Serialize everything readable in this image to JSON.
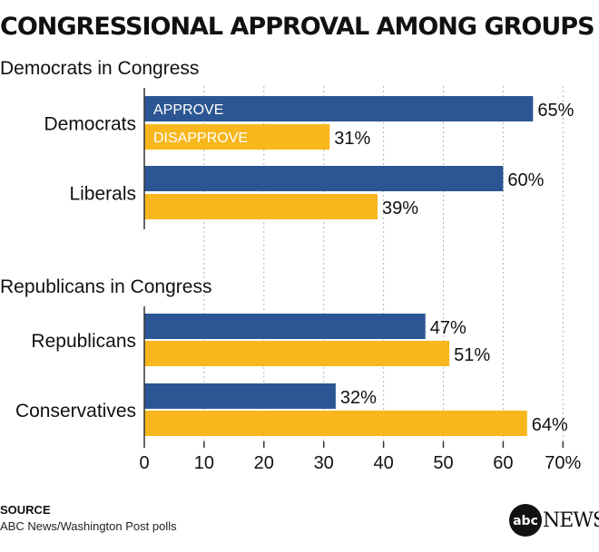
{
  "title": "CONGRESSIONAL APPROVAL AMONG GROUPS",
  "source": {
    "label": "SOURCE",
    "text": "ABC News/Washington Post polls"
  },
  "logo": {
    "mark": "abc",
    "text": "NEWS"
  },
  "colors": {
    "approve": "#2c5693",
    "disapprove": "#f7b71d",
    "axis": "#333333",
    "grid": "#b5b5b5"
  },
  "chart_data": {
    "type": "bar",
    "orientation": "horizontal",
    "xlim": [
      0,
      70
    ],
    "xticks": [
      "0",
      "10",
      "20",
      "30",
      "40",
      "50",
      "60",
      "70%"
    ],
    "grid": true,
    "legend": "inside-first-bars",
    "series": [
      {
        "name": "APPROVE",
        "color": "#2c5693"
      },
      {
        "name": "DISAPPROVE",
        "color": "#f7b71d"
      }
    ],
    "panels": [
      {
        "title": "Democrats in Congress",
        "groups": [
          {
            "label": "Democrats",
            "values": [
              65,
              31
            ],
            "value_labels": [
              "65%",
              "31%"
            ]
          },
          {
            "label": "Liberals",
            "values": [
              60,
              39
            ],
            "value_labels": [
              "60%",
              "39%"
            ]
          }
        ]
      },
      {
        "title": "Republicans in Congress",
        "groups": [
          {
            "label": "Republicans",
            "values": [
              47,
              51
            ],
            "value_labels": [
              "47%",
              "51%"
            ]
          },
          {
            "label": "Conservatives",
            "values": [
              32,
              64
            ],
            "value_labels": [
              "32%",
              "64%"
            ]
          }
        ]
      }
    ]
  }
}
